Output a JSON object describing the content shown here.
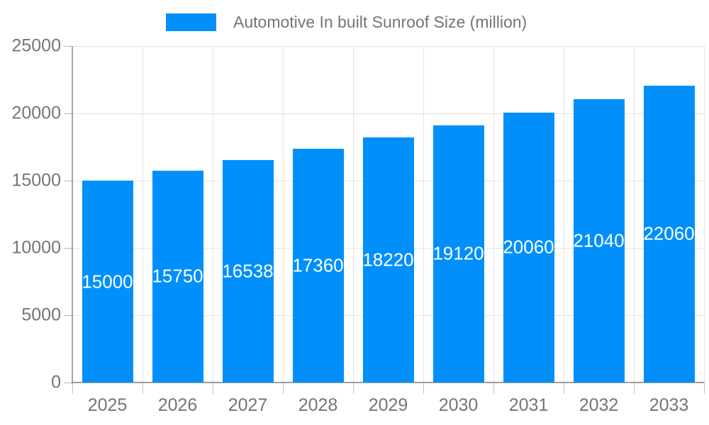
{
  "legend": {
    "label": "Automotive In built Sunroof Size (million)"
  },
  "chart_data": {
    "type": "bar",
    "title": "",
    "xlabel": "",
    "ylabel": "",
    "categories": [
      "2025",
      "2026",
      "2027",
      "2028",
      "2029",
      "2030",
      "2031",
      "2032",
      "2033"
    ],
    "series": [
      {
        "name": "Automotive In built Sunroof Size (million)",
        "values": [
          15000,
          15750,
          16538,
          17360,
          18220,
          19120,
          20060,
          21040,
          22060
        ]
      }
    ],
    "data_labels": [
      "15000",
      "15750",
      "16538",
      "17360",
      "18220",
      "19120",
      "20060",
      "21040",
      "22060"
    ],
    "ylim": [
      0,
      25000
    ],
    "yticks": [
      0,
      5000,
      10000,
      15000,
      20000,
      25000
    ],
    "ytick_labels": [
      "0",
      "5000",
      "10000",
      "15000",
      "20000",
      "25000"
    ],
    "grid": true,
    "legend_position": "top"
  },
  "colors": {
    "bar": "#008FFB",
    "grid_line": "#e4e4e4",
    "axis_line": "#a6a6a6",
    "axis_label": "#757575",
    "data_label": "#ffffff",
    "background": "#ffffff"
  }
}
